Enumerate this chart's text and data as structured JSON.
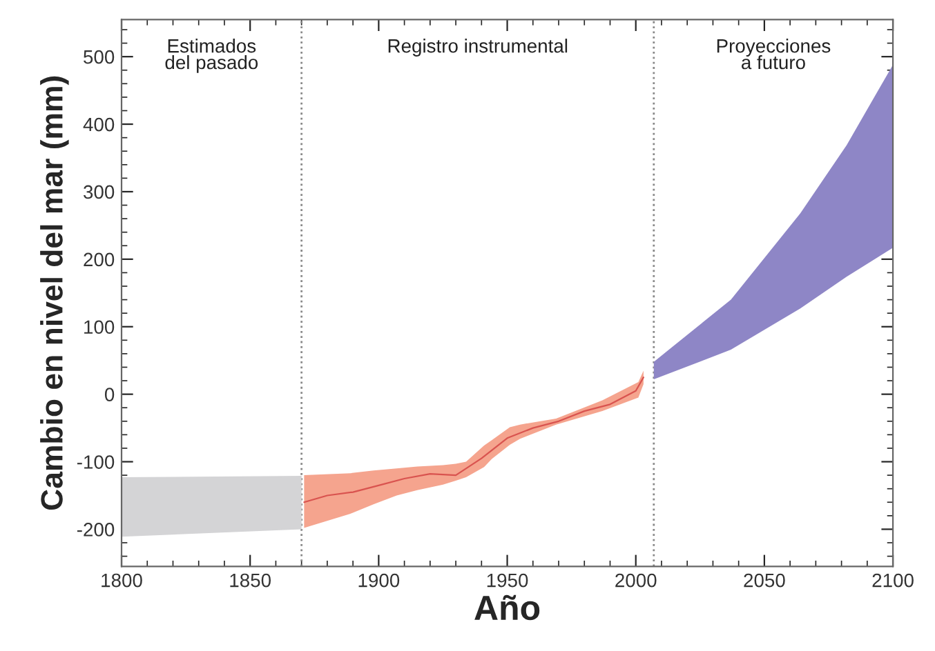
{
  "chart_data": {
    "type": "area",
    "xlabel": "Año",
    "ylabel": "Cambio en nivel del mar (mm)",
    "xlim": [
      1800,
      2100
    ],
    "ylim": [
      -255,
      555
    ],
    "xticks": [
      1800,
      1850,
      1900,
      1950,
      2000,
      2050,
      2100
    ],
    "yticks": [
      -200,
      -100,
      0,
      100,
      200,
      300,
      400,
      500
    ],
    "grid": false,
    "legend": false,
    "series": [
      {
        "color": "#d4d4d6",
        "x": [
          1800,
          1870
        ],
        "values": [
          null,
          null
        ],
        "lower": [
          -211,
          -200
        ],
        "upper": [
          -123,
          -121
        ]
      },
      {
        "color": "#f5a48e",
        "x": [
          1871,
          1889,
          1898,
          1907,
          1915,
          1925,
          1930,
          1934,
          1941,
          1944,
          1951,
          1955,
          1969,
          1987,
          2001,
          2003
        ],
        "values": [
          null,
          null,
          null,
          null,
          null,
          null,
          null,
          null,
          null,
          null,
          null,
          null,
          null,
          null,
          null,
          null
        ],
        "lower": [
          -198,
          -177,
          -163,
          -150,
          -142,
          -134,
          -128,
          -123,
          -108,
          -96,
          -75,
          -66,
          -45,
          -25,
          -5,
          15
        ],
        "upper": [
          -120,
          -117,
          -113,
          -110,
          -107,
          -105,
          -103,
          -100,
          -76,
          -68,
          -49,
          -45,
          -36,
          -9,
          18,
          35
        ]
      },
      {
        "type": "line",
        "color": "#d9534f",
        "line_style": "solid",
        "x": [
          1871,
          1880,
          1890,
          1900,
          1910,
          1920,
          1930,
          1940,
          1950,
          1960,
          1970,
          1980,
          1990,
          2000,
          2003
        ],
        "values": [
          -160,
          -150,
          -145,
          -135,
          -125,
          -118,
          -120,
          -95,
          -65,
          -50,
          -40,
          -25,
          -15,
          5,
          25
        ]
      },
      {
        "color": "#8e86c6",
        "x": [
          2007,
          2037,
          2064,
          2082,
          2100
        ],
        "values": [
          null,
          null,
          null,
          null,
          null
        ],
        "lower": [
          22,
          66,
          127,
          174,
          217
        ],
        "upper": [
          48,
          140,
          268,
          369,
          488
        ]
      }
    ],
    "ref_lines": [
      {
        "axis": "x",
        "value": 1870,
        "label": null,
        "color": "#888888",
        "line_style": "dotted"
      },
      {
        "axis": "x",
        "value": 2007,
        "label": null,
        "color": "#888888",
        "line_style": "dotted"
      }
    ],
    "annotations": [
      "Estimados\ndel pasado",
      "Registro instrumental",
      "Proyecciones\na futuro"
    ]
  }
}
